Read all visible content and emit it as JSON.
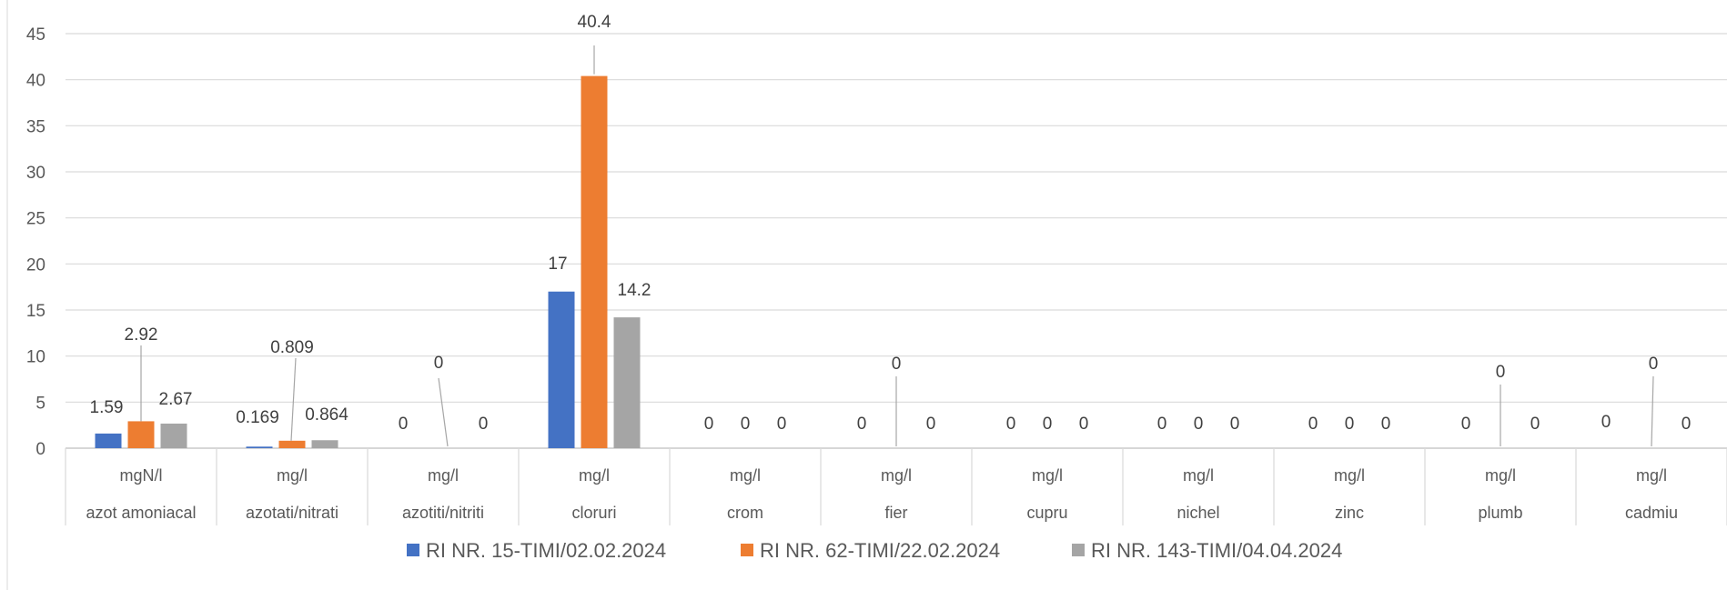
{
  "chart_data": {
    "type": "bar",
    "title": "",
    "xlabel": "",
    "ylabel": "",
    "ylim": [
      0,
      45
    ],
    "yticks": [
      0,
      5,
      10,
      15,
      20,
      25,
      30,
      35,
      40,
      45
    ],
    "grid": true,
    "legend_position": "bottom",
    "units": [
      "mgN/l",
      "mg/l",
      "mg/l",
      "mg/l",
      "mg/l",
      "mg/l",
      "mg/l",
      "mg/l",
      "mg/l",
      "mg/l",
      "mg/l"
    ],
    "categories": [
      "azot amoniacal",
      "azotati/nitrati",
      "azotiti/nitriti",
      "cloruri",
      "crom",
      "fier",
      "cupru",
      "nichel",
      "zinc",
      "plumb",
      "cadmiu"
    ],
    "series": [
      {
        "name": "RI NR. 15-TIMI/02.02.2024",
        "color": "#4472C4",
        "values": [
          1.59,
          0.169,
          0,
          17,
          0,
          0,
          0,
          0,
          0,
          0,
          0
        ],
        "labels": [
          "1.59",
          "0.169",
          "0",
          "17",
          "0",
          "0",
          "0",
          "0",
          "0",
          "0",
          "0"
        ]
      },
      {
        "name": "RI NR. 62-TIMI/22.02.2024",
        "color": "#ED7D31",
        "values": [
          2.92,
          0.809,
          0,
          40.4,
          0,
          0,
          0,
          0,
          0,
          0,
          0
        ],
        "labels": [
          "2.92",
          "0.809",
          "0",
          "40.4",
          "0",
          "0",
          "0",
          "0",
          "0",
          "0",
          "0"
        ]
      },
      {
        "name": "RI NR. 143-TIMI/04.04.2024",
        "color": "#A5A5A5",
        "values": [
          2.67,
          0.864,
          0,
          14.2,
          0,
          0,
          0,
          0,
          0,
          0,
          0
        ],
        "labels": [
          "2.67",
          "0.864",
          "0",
          "14.2",
          "0",
          "0",
          "0",
          "0",
          "0",
          "0",
          "0"
        ]
      }
    ]
  }
}
